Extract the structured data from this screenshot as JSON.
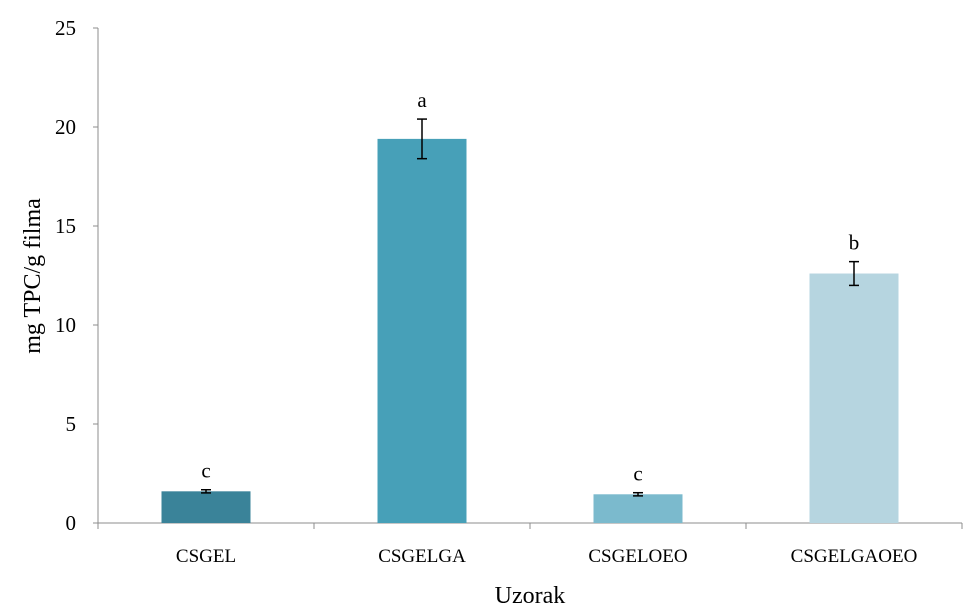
{
  "chart_data": {
    "type": "bar",
    "title": "",
    "xlabel": "Uzorak",
    "ylabel": "mg TPC/g filma",
    "ylim": [
      0,
      25
    ],
    "yticks": [
      0,
      5,
      10,
      15,
      20,
      25
    ],
    "categories": [
      "CSGEL",
      "CSGELGA",
      "CSGELOEO",
      "CSGELGAOEO"
    ],
    "values": [
      1.6,
      19.4,
      1.45,
      12.6
    ],
    "errors": [
      0.08,
      1.0,
      0.08,
      0.6
    ],
    "significance_labels": [
      "c",
      "a",
      "c",
      "b"
    ],
    "bar_colors": [
      "#3a8399",
      "#47a0b8",
      "#7bbacd",
      "#b6d5e0"
    ],
    "grid": false,
    "legend": "none"
  }
}
